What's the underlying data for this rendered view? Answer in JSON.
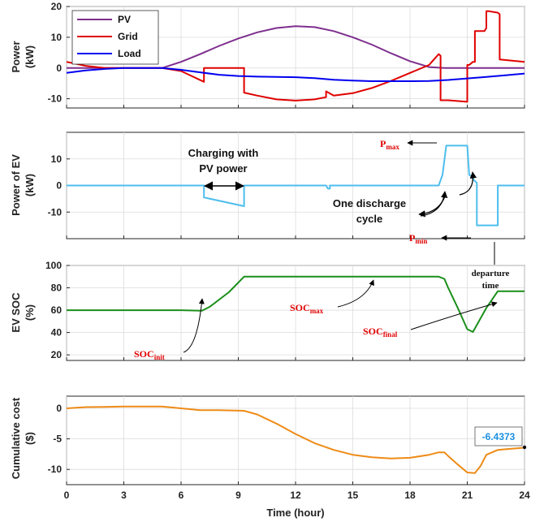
{
  "chart_data": [
    {
      "type": "line",
      "ylabel": "Power\n(kW)",
      "ylim": [
        -13,
        20
      ],
      "yticks": [
        -10,
        0,
        10,
        20
      ],
      "grid": true,
      "legend_placement": "top-left",
      "series": [
        {
          "name": "PV",
          "color": "#7E2F8E",
          "x": [
            0,
            5,
            6,
            7,
            8,
            9,
            10,
            11,
            12,
            13,
            14,
            15,
            16,
            17,
            18,
            19,
            19.8,
            20,
            24
          ],
          "y": [
            0,
            0,
            2,
            4.5,
            7.2,
            9.6,
            11.6,
            13,
            13.6,
            13.3,
            12,
            10,
            7.6,
            4.8,
            2.2,
            0.3,
            0,
            0,
            0
          ]
        },
        {
          "name": "Grid",
          "color": "#E00000",
          "x": [
            0,
            1,
            2,
            3,
            4,
            5,
            6,
            7.2,
            7.2,
            9.3,
            9.3,
            10,
            11,
            12,
            13,
            13.6,
            13.6,
            14,
            15,
            16,
            17,
            18,
            19,
            19.2,
            19.5,
            19.6,
            19.6,
            20,
            21,
            21,
            21.1,
            21.3,
            21.4,
            21.4,
            21.9,
            22,
            22,
            22.1,
            22.6,
            22.7,
            22.7,
            24
          ],
          "y": [
            2,
            0.7,
            0,
            0,
            0,
            0,
            -1,
            -4.5,
            0,
            0,
            -8,
            -9,
            -10.2,
            -10.6,
            -10.2,
            -9.5,
            -7.6,
            -9,
            -8.2,
            -6.5,
            -4.2,
            -1.6,
            1,
            2.4,
            4.5,
            4,
            -10.5,
            -10.5,
            -11,
            1,
            1,
            2,
            2,
            12,
            12,
            13,
            18.5,
            18.5,
            18,
            17.5,
            2.8,
            2
          ]
        },
        {
          "name": "Load",
          "color": "#0000F0",
          "x": [
            0,
            1,
            2,
            3,
            4,
            5,
            6,
            7,
            8,
            9,
            10,
            11,
            12,
            13,
            14,
            15,
            16,
            17,
            18,
            19,
            20,
            21,
            22,
            23,
            24
          ],
          "y": [
            -1.6,
            -0.8,
            -0.3,
            0,
            0,
            0,
            -0.6,
            -1.4,
            -2.2,
            -2.6,
            -2.8,
            -2.9,
            -3,
            -3.3,
            -3.8,
            -4.1,
            -4.3,
            -4.3,
            -4.3,
            -4.2,
            -3.9,
            -3.4,
            -2.9,
            -2.4,
            -1.8
          ]
        }
      ]
    },
    {
      "type": "line",
      "ylabel": "Power of EV\n(kW)",
      "ylim": [
        -20,
        20
      ],
      "yticks": [
        -10,
        0,
        10
      ],
      "grid": true,
      "series": [
        {
          "color": "#4DBEEE",
          "x": [
            0,
            7.2,
            7.2,
            9.3,
            9.3,
            13.6,
            13.7,
            13.8,
            13.8,
            19.5,
            19.7,
            19.7,
            19.9,
            19.9,
            21,
            21.1,
            21.2,
            21.35,
            21.5,
            21.5,
            22.6,
            22.6,
            24
          ],
          "y": [
            0,
            0,
            -4.5,
            -7.8,
            0,
            0,
            -1.2,
            -1.2,
            0,
            0,
            4,
            4,
            15,
            15,
            15,
            4,
            3.5,
            2,
            1,
            -15,
            -15,
            0,
            0
          ]
        }
      ],
      "annotations": [
        {
          "text": "Charging with",
          "text2": "PV power"
        },
        {
          "text": "One discharge",
          "text2": "cycle"
        },
        {
          "text": "P",
          "sub": "max"
        },
        {
          "text": "P",
          "sub": "min"
        }
      ]
    },
    {
      "type": "line",
      "ylabel": "EV SOC\n(%)",
      "ylim": [
        15,
        100
      ],
      "yticks": [
        20,
        40,
        60,
        80,
        100
      ],
      "grid": true,
      "series": [
        {
          "color": "#1A8F1A",
          "x": [
            0,
            6,
            7.1,
            7.5,
            8.5,
            9.3,
            12,
            15,
            18,
            19.5,
            19.8,
            20,
            20.5,
            21,
            21.3,
            22,
            22.6,
            24
          ],
          "y": [
            60,
            60,
            59.5,
            63,
            76,
            90,
            90,
            90,
            90,
            90,
            88,
            80,
            62,
            43,
            40.5,
            62,
            77,
            77
          ]
        }
      ],
      "annotations": [
        {
          "text": "SOC",
          "sub": "init"
        },
        {
          "text": "SOC",
          "sub": "max"
        },
        {
          "text": "SOC",
          "sub": "final"
        },
        {
          "text": "departure",
          "text2": "time"
        }
      ]
    },
    {
      "type": "line",
      "ylabel": "Cumulative cost\n($)",
      "xlabel": "Time (hour)",
      "xlim": [
        0,
        24
      ],
      "xticks": [
        0,
        3,
        6,
        9,
        12,
        15,
        18,
        21,
        24
      ],
      "ylim": [
        -12.5,
        2
      ],
      "yticks": [
        -10,
        -5,
        0
      ],
      "grid": true,
      "series": [
        {
          "color": "#EE8B17",
          "x": [
            0,
            1,
            2,
            3,
            4,
            5,
            6,
            7,
            8,
            9.3,
            10,
            11,
            12,
            13,
            14,
            15,
            16,
            17,
            18,
            19,
            19.5,
            19.8,
            20,
            20.5,
            21,
            21.4,
            21.7,
            22,
            22.6,
            23,
            24
          ],
          "y": [
            0,
            0.2,
            0.25,
            0.3,
            0.3,
            0.3,
            0,
            -0.3,
            -0.3,
            -0.4,
            -1,
            -2.5,
            -4.2,
            -5.7,
            -6.8,
            -7.6,
            -8,
            -8.2,
            -8.1,
            -7.6,
            -7.2,
            -7.2,
            -7.8,
            -9.2,
            -10.5,
            -10.6,
            -9.4,
            -7.6,
            -6.8,
            -6.7,
            -6.4373
          ]
        }
      ],
      "datatip": "-6.4373"
    }
  ]
}
